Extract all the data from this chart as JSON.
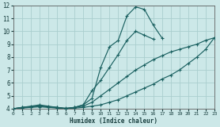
{
  "xlabel": "Humidex (Indice chaleur)",
  "xlim": [
    0,
    23
  ],
  "ylim": [
    4,
    12
  ],
  "xticks": [
    0,
    1,
    2,
    3,
    4,
    5,
    6,
    7,
    8,
    9,
    10,
    11,
    12,
    13,
    14,
    15,
    16,
    17,
    18,
    19,
    20,
    21,
    22,
    23
  ],
  "yticks": [
    4,
    5,
    6,
    7,
    8,
    9,
    10,
    11,
    12
  ],
  "bg_color": "#cce8e8",
  "grid_color": "#aacece",
  "line_color": "#1a6060",
  "lines": [
    {
      "x": [
        0,
        1,
        2,
        3,
        4,
        5,
        6,
        7,
        8,
        9,
        10,
        11,
        12,
        13,
        14,
        15,
        16,
        17
      ],
      "y": [
        4.0,
        4.1,
        4.2,
        4.3,
        4.2,
        4.1,
        4.0,
        4.1,
        4.3,
        4.8,
        7.2,
        8.8,
        9.3,
        11.2,
        11.9,
        11.7,
        10.5,
        9.5
      ]
    },
    {
      "x": [
        0,
        1,
        2,
        3,
        4,
        5,
        6,
        7,
        8,
        9,
        10,
        11,
        12,
        13,
        14,
        15,
        16
      ],
      "y": [
        4.0,
        4.1,
        4.15,
        4.2,
        4.15,
        4.1,
        4.0,
        4.1,
        4.3,
        5.4,
        6.2,
        7.2,
        8.2,
        9.3,
        10.0,
        9.7,
        9.4
      ]
    },
    {
      "x": [
        0,
        1,
        2,
        3,
        4,
        5,
        6,
        7,
        8,
        9,
        10,
        11,
        12,
        13,
        14,
        15,
        16,
        17,
        18,
        19,
        20,
        21,
        22,
        23
      ],
      "y": [
        4.0,
        4.1,
        4.15,
        4.2,
        4.15,
        4.1,
        4.05,
        4.1,
        4.2,
        4.5,
        5.0,
        5.5,
        6.0,
        6.5,
        7.0,
        7.4,
        7.8,
        8.1,
        8.4,
        8.6,
        8.8,
        9.0,
        9.3,
        9.5
      ]
    },
    {
      "x": [
        0,
        1,
        2,
        3,
        4,
        5,
        6,
        7,
        8,
        9,
        10,
        11,
        12,
        13,
        14,
        15,
        16,
        17,
        18,
        19,
        20,
        21,
        22,
        23
      ],
      "y": [
        4.0,
        4.05,
        4.1,
        4.15,
        4.1,
        4.05,
        4.0,
        4.05,
        4.1,
        4.2,
        4.3,
        4.5,
        4.7,
        5.0,
        5.3,
        5.6,
        5.9,
        6.3,
        6.6,
        7.0,
        7.5,
        8.0,
        8.6,
        9.5
      ]
    }
  ]
}
